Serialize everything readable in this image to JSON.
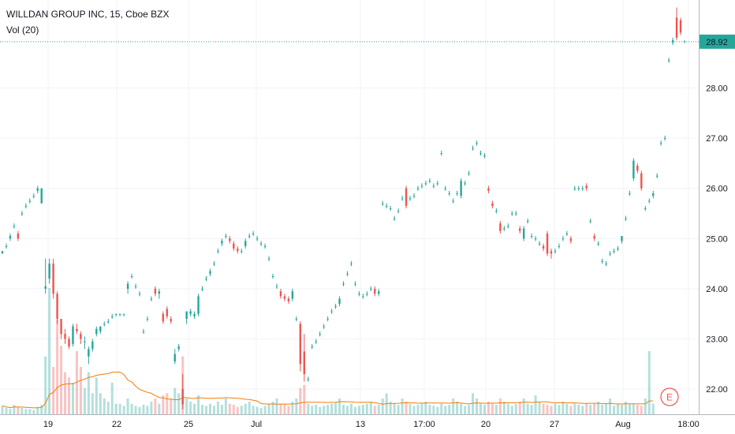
{
  "chart_data": {
    "type": "candlestick",
    "title": "WILLDAN GROUP INC, 15, Cboe BZX",
    "indicator": "Vol (20)",
    "last_price": 28.92,
    "last_price_label": "28.92",
    "ylim": [
      21.5,
      29.75
    ],
    "y_ticks": [
      22,
      23,
      24,
      25,
      26,
      27,
      28
    ],
    "y_tick_labels": [
      "22.00",
      "23.00",
      "24.00",
      "25.00",
      "26.00",
      "27.00",
      "28.00"
    ],
    "x_tick_labels": [
      "19",
      "22",
      "25",
      "Jul",
      "13",
      "17:00",
      "20",
      "27",
      "Aug",
      "18:00"
    ],
    "grid": true,
    "earnings_marker": "E",
    "colors": {
      "up": "#26a69a",
      "down": "#ef5350",
      "volume_ma": "#f57c00",
      "price_line": "#26a69a"
    },
    "candles": [
      [
        24.7,
        24.75,
        24.7,
        24.75
      ],
      [
        24.85,
        24.9,
        24.8,
        24.85
      ],
      [
        25.0,
        25.1,
        24.95,
        25.05
      ],
      [
        25.25,
        25.3,
        25.2,
        25.25
      ],
      [
        25.1,
        25.15,
        24.95,
        25.0
      ],
      [
        25.5,
        25.55,
        25.45,
        25.5
      ],
      [
        25.65,
        25.7,
        25.6,
        25.65
      ],
      [
        25.75,
        25.8,
        25.7,
        25.75
      ],
      [
        25.85,
        25.9,
        25.8,
        25.85
      ],
      [
        25.95,
        26.05,
        25.9,
        26.0
      ],
      [
        25.7,
        26.0,
        25.7,
        26.0
      ],
      [
        24.0,
        24.6,
        23.9,
        24.05
      ],
      [
        24.2,
        24.6,
        24.1,
        24.5
      ],
      [
        24.5,
        24.6,
        23.8,
        23.9
      ],
      [
        23.9,
        23.95,
        23.3,
        23.4
      ],
      [
        23.4,
        23.4,
        23.0,
        23.1
      ],
      [
        23.1,
        23.2,
        22.9,
        23.0
      ],
      [
        23.0,
        23.05,
        22.8,
        22.85
      ],
      [
        22.9,
        23.3,
        22.85,
        23.25
      ],
      [
        23.2,
        23.3,
        23.1,
        23.15
      ],
      [
        23.1,
        23.15,
        22.9,
        23.0
      ],
      [
        22.95,
        23.05,
        22.8,
        22.95
      ],
      [
        22.65,
        22.85,
        22.5,
        22.8
      ],
      [
        22.8,
        23.0,
        22.75,
        22.95
      ],
      [
        23.1,
        23.25,
        23.05,
        23.2
      ],
      [
        23.15,
        23.25,
        23.1,
        23.25
      ],
      [
        23.3,
        23.35,
        23.25,
        23.3
      ],
      [
        23.35,
        23.4,
        23.3,
        23.35
      ],
      [
        23.45,
        23.5,
        23.4,
        23.45
      ],
      [
        23.5,
        23.5,
        23.45,
        23.5
      ],
      [
        23.5,
        23.5,
        23.45,
        23.5
      ],
      [
        23.5,
        23.5,
        23.45,
        23.5
      ],
      [
        24.0,
        24.15,
        23.9,
        24.1
      ],
      [
        24.25,
        24.3,
        24.2,
        24.25
      ],
      [
        24.05,
        24.1,
        24.0,
        24.05
      ],
      [
        23.9,
        23.95,
        23.85,
        23.9
      ],
      [
        23.15,
        23.2,
        23.1,
        23.15
      ],
      [
        23.4,
        23.45,
        23.35,
        23.4
      ],
      [
        23.8,
        23.85,
        23.75,
        23.8
      ],
      [
        24.0,
        24.05,
        23.85,
        23.9
      ],
      [
        23.9,
        24.0,
        23.8,
        23.95
      ],
      [
        23.5,
        23.55,
        23.3,
        23.35
      ],
      [
        23.6,
        23.65,
        23.4,
        23.45
      ],
      [
        23.4,
        23.45,
        23.3,
        23.35
      ],
      [
        22.55,
        22.8,
        22.5,
        22.7
      ],
      [
        22.8,
        22.9,
        22.75,
        22.85
      ],
      [
        22.0,
        22.3,
        21.6,
        21.7
      ],
      [
        23.4,
        23.55,
        23.3,
        23.55
      ],
      [
        23.5,
        23.6,
        23.45,
        23.55
      ],
      [
        23.45,
        23.55,
        23.4,
        23.5
      ],
      [
        23.5,
        23.9,
        23.45,
        23.85
      ],
      [
        24.0,
        24.05,
        23.95,
        24.0
      ],
      [
        24.2,
        24.25,
        24.15,
        24.2
      ],
      [
        24.3,
        24.4,
        24.25,
        24.35
      ],
      [
        24.5,
        24.55,
        24.45,
        24.5
      ],
      [
        24.75,
        24.8,
        24.7,
        24.75
      ],
      [
        24.9,
        25.0,
        24.85,
        24.95
      ],
      [
        25.05,
        25.1,
        25.0,
        25.05
      ],
      [
        25.0,
        25.05,
        24.9,
        24.95
      ],
      [
        24.9,
        24.95,
        24.75,
        24.8
      ],
      [
        24.8,
        24.85,
        24.7,
        24.75
      ],
      [
        24.75,
        24.8,
        24.7,
        24.75
      ],
      [
        24.85,
        25.0,
        24.8,
        24.95
      ],
      [
        25.05,
        25.1,
        25.0,
        25.05
      ],
      [
        25.1,
        25.15,
        25.05,
        25.1
      ],
      [
        25.0,
        25.05,
        24.95,
        25.0
      ],
      [
        24.9,
        24.95,
        24.85,
        24.9
      ],
      [
        24.85,
        24.9,
        24.8,
        24.85
      ],
      [
        24.6,
        24.65,
        24.55,
        24.6
      ],
      [
        24.25,
        24.3,
        24.2,
        24.25
      ],
      [
        24.05,
        24.1,
        24.0,
        24.05
      ],
      [
        23.95,
        24.0,
        23.8,
        23.85
      ],
      [
        23.85,
        23.9,
        23.75,
        23.8
      ],
      [
        23.8,
        23.85,
        23.7,
        23.75
      ],
      [
        23.8,
        24.0,
        23.75,
        23.95
      ],
      [
        23.4,
        23.45,
        23.35,
        23.4
      ],
      [
        23.3,
        23.35,
        22.35,
        22.5
      ],
      [
        22.75,
        23.1,
        22.15,
        22.3
      ],
      [
        22.2,
        22.25,
        22.15,
        22.2
      ],
      [
        22.85,
        22.9,
        22.8,
        22.85
      ],
      [
        22.95,
        23.0,
        22.9,
        22.95
      ],
      [
        23.1,
        23.15,
        23.05,
        23.1
      ],
      [
        23.25,
        23.3,
        23.2,
        23.25
      ],
      [
        23.4,
        23.45,
        23.35,
        23.4
      ],
      [
        23.55,
        23.6,
        23.5,
        23.55
      ],
      [
        23.65,
        23.7,
        23.6,
        23.65
      ],
      [
        23.7,
        23.85,
        23.65,
        23.8
      ],
      [
        24.1,
        24.15,
        24.05,
        24.1
      ],
      [
        24.3,
        24.35,
        24.25,
        24.3
      ],
      [
        24.5,
        24.55,
        24.45,
        24.5
      ],
      [
        24.1,
        24.15,
        24.05,
        24.1
      ],
      [
        23.9,
        23.95,
        23.85,
        23.9
      ],
      [
        23.85,
        23.9,
        23.8,
        23.85
      ],
      [
        23.9,
        23.95,
        23.85,
        23.9
      ],
      [
        24.0,
        24.05,
        23.95,
        24.0
      ],
      [
        24.0,
        24.05,
        23.85,
        23.9
      ],
      [
        23.9,
        24.0,
        23.85,
        23.95
      ],
      [
        25.7,
        25.75,
        25.65,
        25.7
      ],
      [
        25.65,
        25.7,
        25.6,
        25.65
      ],
      [
        25.6,
        25.65,
        25.55,
        25.6
      ],
      [
        25.4,
        25.45,
        25.35,
        25.4
      ],
      [
        25.55,
        25.6,
        25.5,
        25.55
      ],
      [
        25.8,
        25.85,
        25.75,
        25.8
      ],
      [
        26.0,
        26.05,
        25.6,
        25.65
      ],
      [
        25.8,
        25.85,
        25.75,
        25.8
      ],
      [
        25.85,
        25.9,
        25.8,
        25.85
      ],
      [
        26.0,
        26.05,
        25.95,
        26.0
      ],
      [
        26.05,
        26.1,
        26.0,
        26.05
      ],
      [
        26.1,
        26.15,
        26.05,
        26.1
      ],
      [
        26.15,
        26.2,
        26.1,
        26.15
      ],
      [
        26.05,
        26.1,
        26.0,
        26.05
      ],
      [
        26.1,
        26.15,
        26.05,
        26.1
      ],
      [
        26.7,
        26.75,
        26.65,
        26.7
      ],
      [
        26.0,
        26.05,
        25.95,
        26.0
      ],
      [
        25.9,
        25.95,
        25.85,
        25.9
      ],
      [
        25.75,
        25.8,
        25.7,
        25.75
      ],
      [
        25.9,
        25.95,
        25.85,
        25.9
      ],
      [
        25.85,
        26.2,
        25.8,
        26.15
      ],
      [
        26.1,
        26.15,
        26.05,
        26.1
      ],
      [
        26.3,
        26.35,
        26.25,
        26.3
      ],
      [
        26.8,
        26.85,
        26.75,
        26.8
      ],
      [
        26.9,
        26.95,
        26.85,
        26.9
      ],
      [
        26.7,
        26.75,
        26.65,
        26.7
      ],
      [
        26.65,
        26.7,
        26.6,
        26.65
      ],
      [
        26.0,
        26.05,
        25.9,
        25.95
      ],
      [
        25.7,
        25.75,
        25.6,
        25.65
      ],
      [
        25.55,
        25.6,
        25.5,
        25.55
      ],
      [
        25.3,
        25.35,
        25.1,
        25.15
      ],
      [
        25.2,
        25.25,
        25.15,
        25.2
      ],
      [
        25.25,
        25.3,
        25.2,
        25.25
      ],
      [
        25.5,
        25.55,
        25.45,
        25.5
      ],
      [
        25.5,
        25.55,
        25.45,
        25.5
      ],
      [
        25.2,
        25.25,
        25.1,
        25.15
      ],
      [
        25.0,
        25.25,
        24.95,
        25.2
      ],
      [
        25.35,
        25.4,
        25.3,
        25.35
      ],
      [
        25.05,
        25.1,
        25.0,
        25.05
      ],
      [
        25.0,
        25.05,
        24.95,
        25.0
      ],
      [
        24.9,
        24.95,
        24.85,
        24.9
      ],
      [
        24.85,
        24.9,
        24.75,
        24.8
      ],
      [
        25.1,
        25.15,
        24.65,
        24.7
      ],
      [
        24.75,
        24.8,
        24.6,
        24.7
      ],
      [
        24.75,
        24.8,
        24.7,
        24.75
      ],
      [
        24.85,
        24.9,
        24.8,
        24.85
      ],
      [
        25.0,
        25.05,
        24.95,
        25.0
      ],
      [
        25.1,
        25.15,
        25.05,
        25.1
      ],
      [
        25.0,
        25.05,
        24.9,
        24.95
      ],
      [
        26.0,
        26.05,
        25.95,
        26.0
      ],
      [
        26.0,
        26.05,
        25.95,
        26.0
      ],
      [
        26.0,
        26.05,
        25.95,
        26.0
      ],
      [
        26.05,
        26.1,
        25.95,
        26.0
      ],
      [
        25.35,
        25.4,
        25.3,
        25.35
      ],
      [
        25.05,
        25.1,
        24.95,
        25.0
      ],
      [
        24.9,
        24.95,
        24.85,
        24.9
      ],
      [
        24.55,
        24.6,
        24.5,
        24.55
      ],
      [
        24.5,
        24.55,
        24.45,
        24.5
      ],
      [
        24.7,
        24.75,
        24.65,
        24.7
      ],
      [
        24.75,
        24.8,
        24.7,
        24.75
      ],
      [
        24.8,
        24.85,
        24.75,
        24.8
      ],
      [
        24.95,
        25.05,
        24.9,
        25.05
      ],
      [
        25.4,
        25.45,
        25.35,
        25.4
      ],
      [
        25.9,
        25.95,
        25.85,
        25.9
      ],
      [
        26.2,
        26.6,
        26.15,
        26.55
      ],
      [
        26.45,
        26.5,
        26.3,
        26.35
      ],
      [
        26.3,
        26.35,
        25.95,
        26.0
      ],
      [
        25.6,
        25.65,
        25.55,
        25.6
      ],
      [
        25.75,
        25.8,
        25.7,
        25.75
      ],
      [
        25.85,
        25.95,
        25.8,
        25.9
      ],
      [
        26.25,
        26.3,
        26.2,
        26.25
      ],
      [
        26.9,
        26.95,
        26.85,
        26.9
      ],
      [
        27.0,
        27.05,
        26.95,
        27.0
      ],
      [
        28.55,
        28.6,
        28.5,
        28.55
      ],
      [
        28.9,
        29.0,
        28.85,
        28.95
      ],
      [
        29.4,
        29.6,
        28.95,
        29.0
      ],
      [
        29.35,
        29.4,
        29.05,
        29.1
      ],
      [
        28.92,
        28.95,
        28.9,
        28.92
      ]
    ],
    "volumes": [
      0.8,
      0.6,
      0.5,
      0.9,
      0.7,
      0.6,
      0.5,
      0.5,
      0.4,
      0.7,
      0.9,
      5.5,
      12.0,
      4.5,
      9.0,
      6.5,
      4.0,
      3.5,
      3.0,
      6.0,
      4.5,
      2.5,
      4.0,
      2.0,
      3.5,
      2.0,
      1.5,
      1.2,
      3.0,
      1.0,
      1.0,
      0.8,
      1.5,
      1.0,
      0.8,
      0.7,
      0.9,
      0.8,
      1.2,
      1.5,
      1.0,
      1.8,
      2.0,
      1.5,
      2.5,
      2.0,
      5.5,
      1.5,
      1.2,
      1.0,
      1.8,
      0.9,
      0.8,
      1.0,
      0.8,
      1.2,
      0.9,
      1.5,
      1.0,
      0.9,
      0.7,
      0.8,
      1.0,
      1.2,
      0.8,
      0.7,
      0.6,
      0.8,
      1.0,
      1.2,
      1.5,
      1.0,
      0.9,
      0.8,
      1.2,
      1.5,
      2.5,
      2.8,
      1.0,
      0.8,
      0.9,
      0.7,
      0.8,
      0.9,
      1.0,
      1.1,
      1.5,
      0.9,
      0.8,
      1.0,
      0.7,
      0.8,
      0.9,
      1.0,
      1.2,
      0.8,
      0.9,
      1.5,
      2.0,
      1.2,
      1.0,
      0.9,
      1.5,
      1.2,
      1.0,
      0.8,
      0.9,
      1.0,
      1.2,
      0.9,
      0.8,
      0.7,
      1.0,
      0.8,
      0.9,
      1.5,
      1.2,
      1.0,
      0.8,
      0.9,
      2.0,
      1.5,
      1.0,
      0.9,
      1.2,
      1.0,
      0.9,
      1.5,
      1.2,
      1.0,
      0.8,
      1.0,
      1.2,
      1.5,
      1.0,
      0.9,
      1.8,
      1.2,
      1.0,
      0.9,
      0.8,
      1.0,
      0.9,
      1.2,
      1.0,
      0.8,
      1.0,
      0.9,
      0.8,
      1.0,
      0.9,
      1.0,
      1.2,
      0.9,
      1.0,
      1.5,
      0.8,
      1.0,
      0.9,
      1.2,
      1.0,
      1.0,
      0.9,
      0.8,
      1.5,
      6.0,
      1.0
    ]
  }
}
